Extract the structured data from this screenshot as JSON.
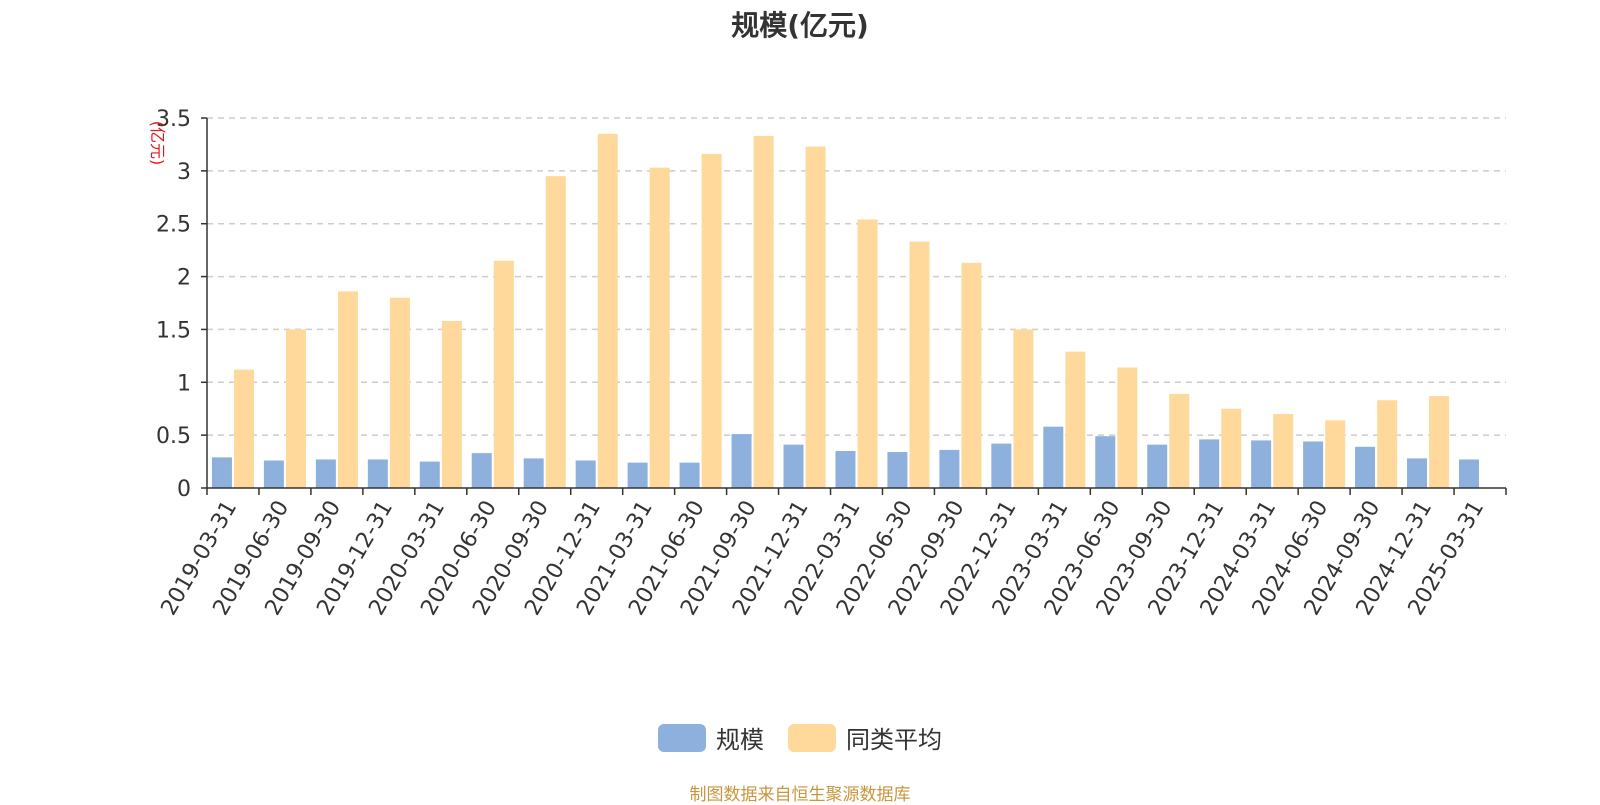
{
  "chart_data": {
    "type": "bar",
    "title": "规模(亿元)",
    "ylabel": "(亿元)",
    "ylim": [
      0,
      3.5
    ],
    "yticks": [
      "0",
      "0.5",
      "1",
      "1.5",
      "2",
      "2.5",
      "3",
      "3.5"
    ],
    "grid": true,
    "legend_position": "bottom",
    "categories": [
      "2019-03-31",
      "2019-06-30",
      "2019-09-30",
      "2019-12-31",
      "2020-03-31",
      "2020-06-30",
      "2020-09-30",
      "2020-12-31",
      "2021-03-31",
      "2021-06-30",
      "2021-09-30",
      "2021-12-31",
      "2022-03-31",
      "2022-06-30",
      "2022-09-30",
      "2022-12-31",
      "2023-03-31",
      "2023-06-30",
      "2023-09-30",
      "2023-12-31",
      "2024-03-31",
      "2024-06-30",
      "2024-09-30",
      "2024-12-31",
      "2025-03-31"
    ],
    "series": [
      {
        "name": "规模",
        "color": "#8eb0dd",
        "values": [
          0.29,
          0.26,
          0.27,
          0.27,
          0.25,
          0.33,
          0.28,
          0.26,
          0.24,
          0.24,
          0.51,
          0.41,
          0.35,
          0.34,
          0.36,
          0.42,
          0.58,
          0.49,
          0.41,
          0.46,
          0.45,
          0.44,
          0.39,
          0.28,
          0.27
        ]
      },
      {
        "name": "同类平均",
        "color": "#ffd99b",
        "values": [
          1.12,
          1.5,
          1.86,
          1.8,
          1.58,
          2.15,
          2.95,
          3.35,
          3.03,
          3.16,
          3.33,
          3.23,
          2.54,
          2.33,
          2.13,
          1.5,
          1.29,
          1.14,
          0.89,
          0.75,
          0.7,
          0.64,
          0.83,
          0.87,
          null
        ]
      }
    ]
  },
  "footer": {
    "source": "制图数据来自恒生聚源数据库"
  }
}
